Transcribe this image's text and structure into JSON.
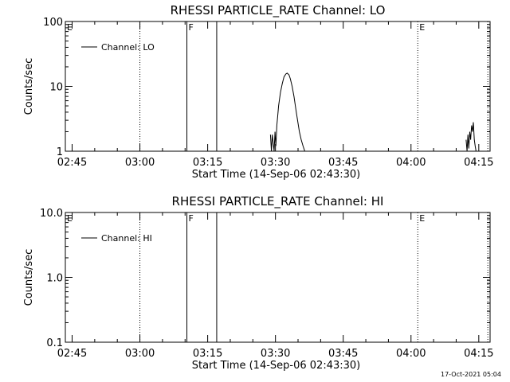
{
  "footer": {
    "timestamp": "17-Oct-2021 05:04"
  },
  "chart_data": [
    {
      "type": "line",
      "title": "RHESSI PARTICLE_RATE Channel: LO",
      "xlabel": "Start Time (14-Sep-06 02:43:30)",
      "ylabel": "Counts/sec",
      "yscale": "log",
      "ylim": [
        1,
        100
      ],
      "y_tick_values": [
        1,
        10,
        100
      ],
      "y_tick_labels": [
        "1",
        "10",
        "100"
      ],
      "x_range_min": [
        0,
        94
      ],
      "x_tick_values": [
        1.5,
        16.5,
        31.5,
        46.5,
        61.5,
        76.5,
        91.5
      ],
      "x_tick_labels": [
        "02:45",
        "03:00",
        "03:15",
        "03:30",
        "03:45",
        "04:00",
        "04:15"
      ],
      "legend": {
        "position": "top-left",
        "entries": [
          "Channel: LO"
        ]
      },
      "series": [
        {
          "name": "Channel: LO",
          "x": [
            45.2,
            45.4,
            45.6,
            45.8,
            46.2,
            46.4,
            46.6,
            46.8,
            47.0,
            47.2,
            47.6,
            48.0,
            48.4,
            48.8,
            49.1,
            49.5,
            49.8,
            50.2,
            50.6,
            51.0,
            51.4,
            51.8,
            52.2,
            52.6,
            53.0,
            53.4,
            88.5,
            88.7,
            88.9,
            89.1,
            89.3,
            89.5,
            89.7,
            89.9,
            90.1,
            90.3,
            90.5,
            90.7,
            90.9,
            91.1
          ],
          "y": [
            null,
            1.8,
            1.0,
            1.8,
            1.0,
            2.0,
            1.2,
            2.5,
            3.5,
            5.0,
            8.0,
            11.0,
            14.0,
            15.5,
            16.0,
            15.0,
            13.0,
            10.0,
            7.0,
            4.5,
            3.0,
            2.0,
            1.5,
            1.2,
            1.0,
            null,
            null,
            1.5,
            1.0,
            1.8,
            1.1,
            2.0,
            1.5,
            2.5,
            2.0,
            2.8,
            1.5,
            1.2,
            1.0,
            null
          ]
        }
      ],
      "markers": [
        {
          "x": 16.5,
          "style": "dotted",
          "label": ""
        },
        {
          "x": 26.9,
          "style": "solid",
          "label": "F"
        },
        {
          "x": 33.5,
          "style": "solid",
          "label": ""
        },
        {
          "x": 78.0,
          "style": "dotted",
          "label": "E"
        },
        {
          "x": 93.5,
          "style": "dotted",
          "label": ""
        }
      ],
      "edge_label": "E"
    },
    {
      "type": "line",
      "title": "RHESSI PARTICLE_RATE Channel: HI",
      "xlabel": "Start Time (14-Sep-06 02:43:30)",
      "ylabel": "Counts/sec",
      "yscale": "log",
      "ylim": [
        0.1,
        10
      ],
      "y_tick_values": [
        0.1,
        1,
        10
      ],
      "y_tick_labels": [
        "0.1",
        "1.0",
        "10.0"
      ],
      "x_range_min": [
        0,
        94
      ],
      "x_tick_values": [
        1.5,
        16.5,
        31.5,
        46.5,
        61.5,
        76.5,
        91.5
      ],
      "x_tick_labels": [
        "02:45",
        "03:00",
        "03:15",
        "03:30",
        "03:45",
        "04:00",
        "04:15"
      ],
      "legend": {
        "position": "top-left",
        "entries": [
          "Channel: HI"
        ]
      },
      "series": [
        {
          "name": "Channel: HI",
          "x": [],
          "y": []
        }
      ],
      "markers": [
        {
          "x": 16.5,
          "style": "dotted",
          "label": ""
        },
        {
          "x": 26.9,
          "style": "solid",
          "label": "F"
        },
        {
          "x": 33.5,
          "style": "solid",
          "label": ""
        },
        {
          "x": 78.0,
          "style": "dotted",
          "label": "E"
        },
        {
          "x": 93.5,
          "style": "dotted",
          "label": ""
        }
      ],
      "edge_label": "E"
    }
  ]
}
